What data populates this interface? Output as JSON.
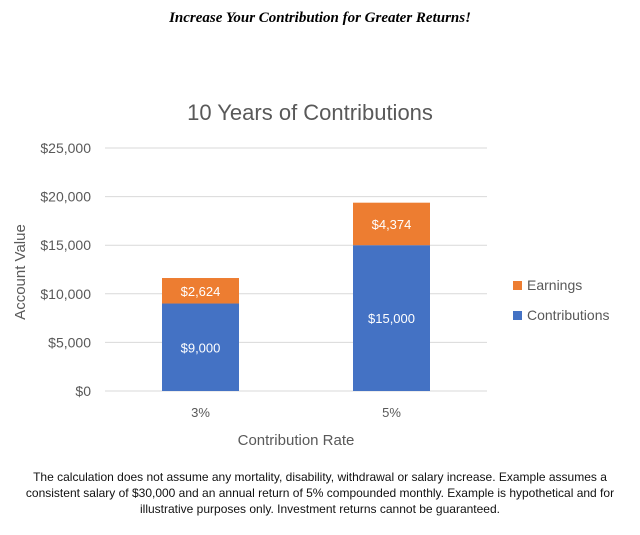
{
  "header": {
    "headline": "Increase Your Contribution for Greater Returns!"
  },
  "chart_data": {
    "type": "bar",
    "stacked": true,
    "title": "10 Years of Contributions",
    "xlabel": "Contribution Rate",
    "ylabel": "Account Value",
    "categories": [
      "3%",
      "5%"
    ],
    "series": [
      {
        "name": "Contributions",
        "values": [
          9000,
          15000
        ],
        "labels": [
          "$9,000",
          "$15,000"
        ],
        "color": "#4472C4"
      },
      {
        "name": "Earnings",
        "values": [
          2624,
          4374
        ],
        "labels": [
          "$2,624",
          "$4,374"
        ],
        "color": "#ED7D31"
      }
    ],
    "ylim": [
      0,
      25000
    ],
    "yticks": [
      0,
      5000,
      10000,
      15000,
      20000,
      25000
    ],
    "ytick_labels": [
      "$0",
      "$5,000",
      "$10,000",
      "$15,000",
      "$20,000",
      "$25,000"
    ],
    "legend": [
      "Earnings",
      "Contributions"
    ],
    "legend_position": "right",
    "grid": true,
    "colors": {
      "gridline": "#D9D9D9",
      "text": "#595959",
      "label_on_bar": "#FFFFFF"
    }
  },
  "footer": {
    "disclaimer": "The calculation does not assume any mortality, disability, withdrawal or salary increase. Example assumes a consistent salary of $30,000 and an annual return of 5% compounded monthly. Example is hypothetical and for illustrative purposes only. Investment returns cannot be guaranteed."
  }
}
